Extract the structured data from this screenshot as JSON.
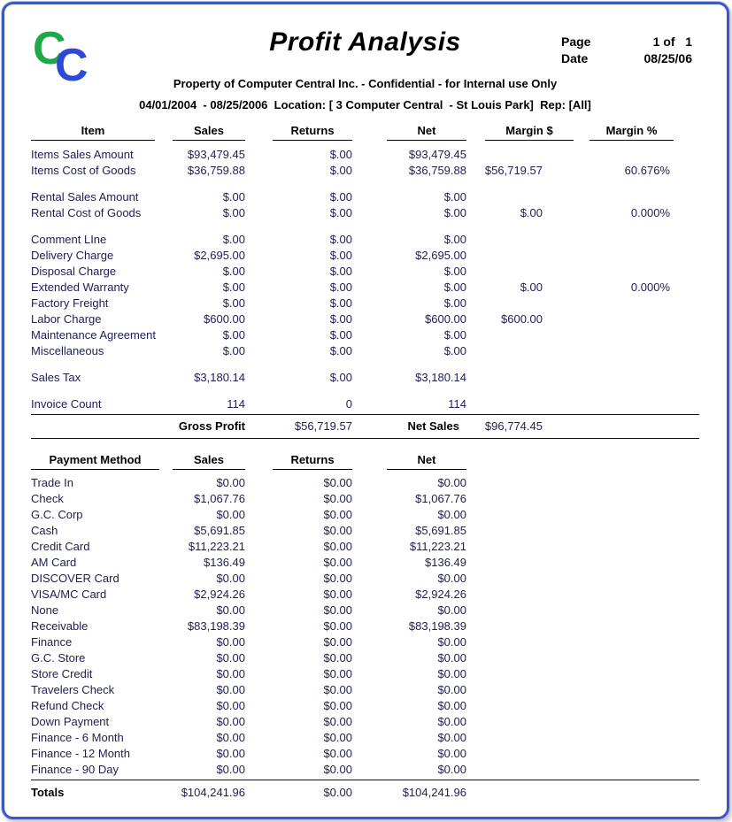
{
  "meta": {
    "title": "Profit Analysis",
    "page_label": "Page",
    "page_value": "1 of   1",
    "date_label": "Date",
    "date_value": "08/25/06",
    "logo_c1": "C",
    "logo_c2": "C",
    "confidential": "Property of Computer Central Inc. - Confidential - for Internal use Only",
    "filters": "04/01/2004  - 08/25/2006  Location: [ 3 Computer Central  - St Louis Park]  Rep: [All]"
  },
  "colors": {
    "border_blue": "#3c56cc",
    "logo_green": "#1fa847",
    "logo_blue": "#2d49d6",
    "text_navy": "#1e1e55",
    "header_black": "#000000"
  },
  "profit_table": {
    "headers": [
      "Item",
      "Sales",
      "Returns",
      "Net",
      "Margin $",
      "Margin %"
    ],
    "rows": [
      [
        "Items Sales Amount",
        "$93,479.45",
        "$.00",
        "$93,479.45",
        "",
        ""
      ],
      [
        "Items Cost of Goods",
        "$36,759.88",
        "$.00",
        "$36,759.88",
        "$56,719.57",
        "60.676%"
      ],
      null,
      [
        "Rental Sales Amount",
        "$.00",
        "$.00",
        "$.00",
        "",
        ""
      ],
      [
        "Rental Cost of Goods",
        "$.00",
        "$.00",
        "$.00",
        "$.00",
        "0.000%"
      ],
      null,
      [
        "Comment LIne",
        "$.00",
        "$.00",
        "$.00",
        "",
        ""
      ],
      [
        "Delivery Charge",
        "$2,695.00",
        "$.00",
        "$2,695.00",
        "",
        ""
      ],
      [
        "Disposal Charge",
        "$.00",
        "$.00",
        "$.00",
        "",
        ""
      ],
      [
        "Extended Warranty",
        "$.00",
        "$.00",
        "$.00",
        "$.00",
        "0.000%"
      ],
      [
        "Factory Freight",
        "$.00",
        "$.00",
        "$.00",
        "",
        ""
      ],
      [
        "Labor Charge",
        "$600.00",
        "$.00",
        "$600.00",
        "$600.00",
        ""
      ],
      [
        "Maintenance Agreement",
        "$.00",
        "$.00",
        "$.00",
        "",
        ""
      ],
      [
        "Miscellaneous",
        "$.00",
        "$.00",
        "$.00",
        "",
        ""
      ],
      null,
      [
        "Sales Tax",
        "$3,180.14",
        "$.00",
        "$3,180.14",
        "",
        ""
      ],
      null,
      [
        "Invoice Count",
        "114",
        "0",
        "114",
        "",
        ""
      ]
    ],
    "summary": {
      "gross_profit_label": "Gross Profit",
      "gross_profit_value": "$56,719.57",
      "net_sales_label": "Net Sales",
      "net_sales_value": "$96,774.45"
    }
  },
  "payment_table": {
    "headers": [
      "Payment Method",
      "Sales",
      "Returns",
      "Net"
    ],
    "rows": [
      [
        "Trade In",
        "$0.00",
        "$0.00",
        "$0.00"
      ],
      [
        "Check",
        "$1,067.76",
        "$0.00",
        "$1,067.76"
      ],
      [
        "G.C. Corp",
        "$0.00",
        "$0.00",
        "$0.00"
      ],
      [
        "Cash",
        "$5,691.85",
        "$0.00",
        "$5,691.85"
      ],
      [
        "Credit Card",
        "$11,223.21",
        "$0.00",
        "$11,223.21"
      ],
      [
        "AM Card",
        "$136.49",
        "$0.00",
        "$136.49"
      ],
      [
        "DISCOVER Card",
        "$0.00",
        "$0.00",
        "$0.00"
      ],
      [
        "VISA/MC  Card",
        "$2,924.26",
        "$0.00",
        "$2,924.26"
      ],
      [
        "None",
        "$0.00",
        "$0.00",
        "$0.00"
      ],
      [
        "Receivable",
        "$83,198.39",
        "$0.00",
        "$83,198.39"
      ],
      [
        "Finance",
        "$0.00",
        "$0.00",
        "$0.00"
      ],
      [
        "G.C. Store",
        "$0.00",
        "$0.00",
        "$0.00"
      ],
      [
        "Store Credit",
        "$0.00",
        "$0.00",
        "$0.00"
      ],
      [
        "Travelers Check",
        "$0.00",
        "$0.00",
        "$0.00"
      ],
      [
        "Refund Check",
        "$0.00",
        "$0.00",
        "$0.00"
      ],
      [
        "Down Payment",
        "$0.00",
        "$0.00",
        "$0.00"
      ],
      [
        "Finance - 6 Month",
        "$0.00",
        "$0.00",
        "$0.00"
      ],
      [
        "Finance - 12 Month",
        "$0.00",
        "$0.00",
        "$0.00"
      ],
      [
        "Finance - 90 Day",
        "$0.00",
        "$0.00",
        "$0.00"
      ]
    ],
    "totals": [
      "Totals",
      "$104,241.96",
      "$0.00",
      "$104,241.96"
    ]
  }
}
